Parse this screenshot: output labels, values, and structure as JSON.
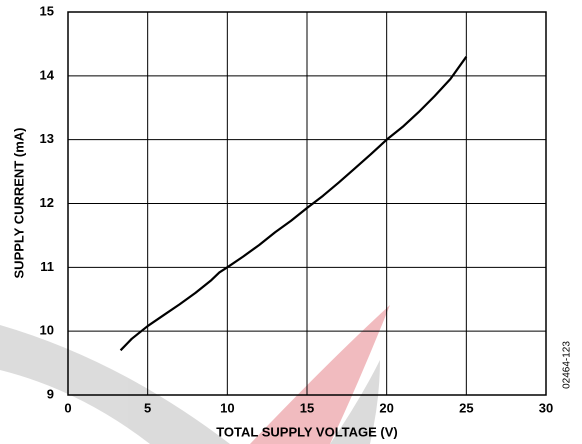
{
  "chart_data": {
    "type": "line",
    "x_label": "TOTAL SUPPLY VOLTAGE (V)",
    "y_label": "SUPPLY CURRENT (mA)",
    "figure_id": "02464-123",
    "x": [
      3.3,
      4,
      5,
      6,
      7,
      8,
      9,
      9.5,
      10,
      11,
      12,
      13,
      14,
      15,
      16,
      17,
      18,
      19,
      20,
      21,
      22,
      23,
      24,
      25
    ],
    "series": [
      {
        "color": "#000000",
        "values": [
          9.7,
          9.88,
          10.08,
          10.25,
          10.42,
          10.6,
          10.8,
          10.92,
          11.0,
          11.17,
          11.35,
          11.55,
          11.73,
          11.93,
          12.12,
          12.33,
          12.55,
          12.77,
          13.0,
          13.2,
          13.43,
          13.68,
          13.95,
          14.3
        ]
      }
    ],
    "xlim": [
      0,
      30
    ],
    "xticks": [
      0,
      5,
      10,
      15,
      20,
      25,
      30
    ],
    "ylim": [
      9,
      15
    ],
    "yticks": [
      9,
      10,
      11,
      12,
      13,
      14,
      15
    ],
    "grid": true
  }
}
